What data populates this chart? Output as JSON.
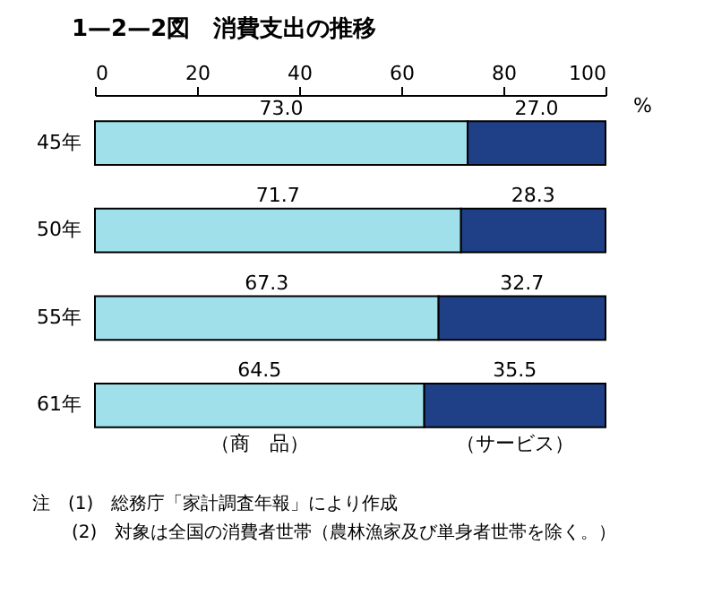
{
  "chart_data": {
    "type": "bar",
    "orientation": "horizontal",
    "stacked": true,
    "title": "1—2—2図　消費支出の推移",
    "xlabel": "%",
    "categories": [
      "45年",
      "50年",
      "55年",
      "61年"
    ],
    "series": [
      {
        "name": "（商　品）",
        "color": "#9fe0ea",
        "values": [
          73.0,
          71.7,
          67.3,
          64.5
        ],
        "value_labels": [
          "73.0",
          "71.7",
          "67.3",
          "64.5"
        ]
      },
      {
        "name": "（サービス）",
        "color": "#1f3f86",
        "values": [
          27.0,
          28.3,
          32.7,
          35.5
        ],
        "value_labels": [
          "27.0",
          "28.3",
          "32.7",
          "35.5"
        ]
      }
    ],
    "xlim": [
      0,
      100
    ],
    "xticks": [
      0,
      20,
      40,
      60,
      80,
      100
    ],
    "annotations": [
      "注　(1)　総務庁「家計調査年報」により作成",
      "(2)　対象は全国の消費者世帯（農林漁家及び単身者世帯を除く。）"
    ]
  }
}
